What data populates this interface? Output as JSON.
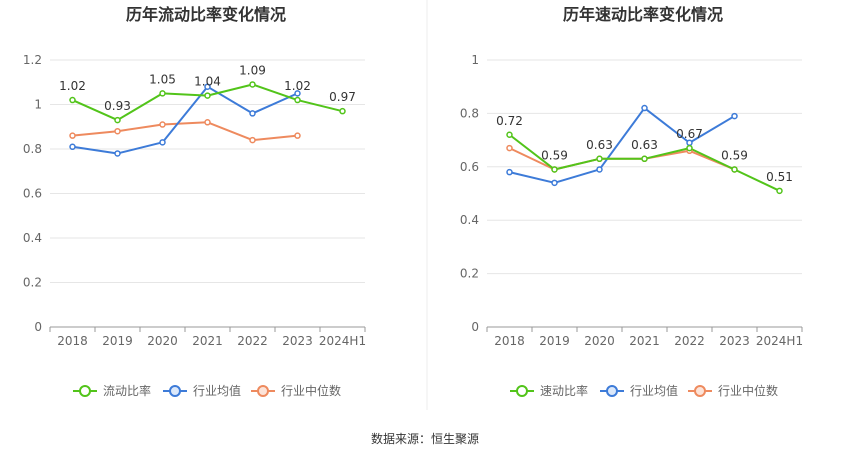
{
  "colors": {
    "primary": "#52c41a",
    "industry_avg": "#3d7bd8",
    "industry_median": "#ee8a5e",
    "grid": "#e6e6e6",
    "axis": "#999999",
    "divider": "#eeeeee"
  },
  "source": "数据来源：恒生聚源",
  "chart_data": [
    {
      "type": "line",
      "title": "历年流动比率变化情况",
      "categories": [
        "2018",
        "2019",
        "2020",
        "2021",
        "2022",
        "2023",
        "2024H1"
      ],
      "ylim": [
        0,
        1.2
      ],
      "yticks": [
        "0",
        "0.2",
        "0.4",
        "0.6",
        "0.8",
        "1",
        "1.2"
      ],
      "grid": true,
      "legend_position": "bottom",
      "series": [
        {
          "name": "流动比率",
          "values": [
            1.02,
            0.93,
            1.05,
            1.04,
            1.09,
            1.02,
            0.97
          ],
          "labels": [
            "1.02",
            "0.93",
            "1.05",
            "1.04",
            "1.09",
            "1.02",
            "0.97"
          ]
        },
        {
          "name": "行业均值",
          "values": [
            0.81,
            0.78,
            0.83,
            1.08,
            0.96,
            1.05,
            null
          ]
        },
        {
          "name": "行业中位数",
          "values": [
            0.86,
            0.88,
            0.91,
            0.92,
            0.84,
            0.86,
            null
          ]
        }
      ]
    },
    {
      "type": "line",
      "title": "历年速动比率变化情况",
      "categories": [
        "2018",
        "2019",
        "2020",
        "2021",
        "2022",
        "2023",
        "2024H1"
      ],
      "ylim": [
        0,
        1
      ],
      "yticks": [
        "0",
        "0.2",
        "0.4",
        "0.6",
        "0.8",
        "1"
      ],
      "grid": true,
      "legend_position": "bottom",
      "series": [
        {
          "name": "速动比率",
          "values": [
            0.72,
            0.59,
            0.63,
            0.63,
            0.67,
            0.59,
            0.51
          ],
          "labels": [
            "0.72",
            "0.59",
            "0.63",
            "0.63",
            "0.67",
            "0.59",
            "0.51"
          ]
        },
        {
          "name": "行业均值",
          "values": [
            0.58,
            0.54,
            0.59,
            0.82,
            0.69,
            0.79,
            null
          ]
        },
        {
          "name": "行业中位数",
          "values": [
            0.67,
            0.59,
            0.63,
            0.63,
            0.66,
            0.59,
            null
          ]
        }
      ]
    }
  ]
}
